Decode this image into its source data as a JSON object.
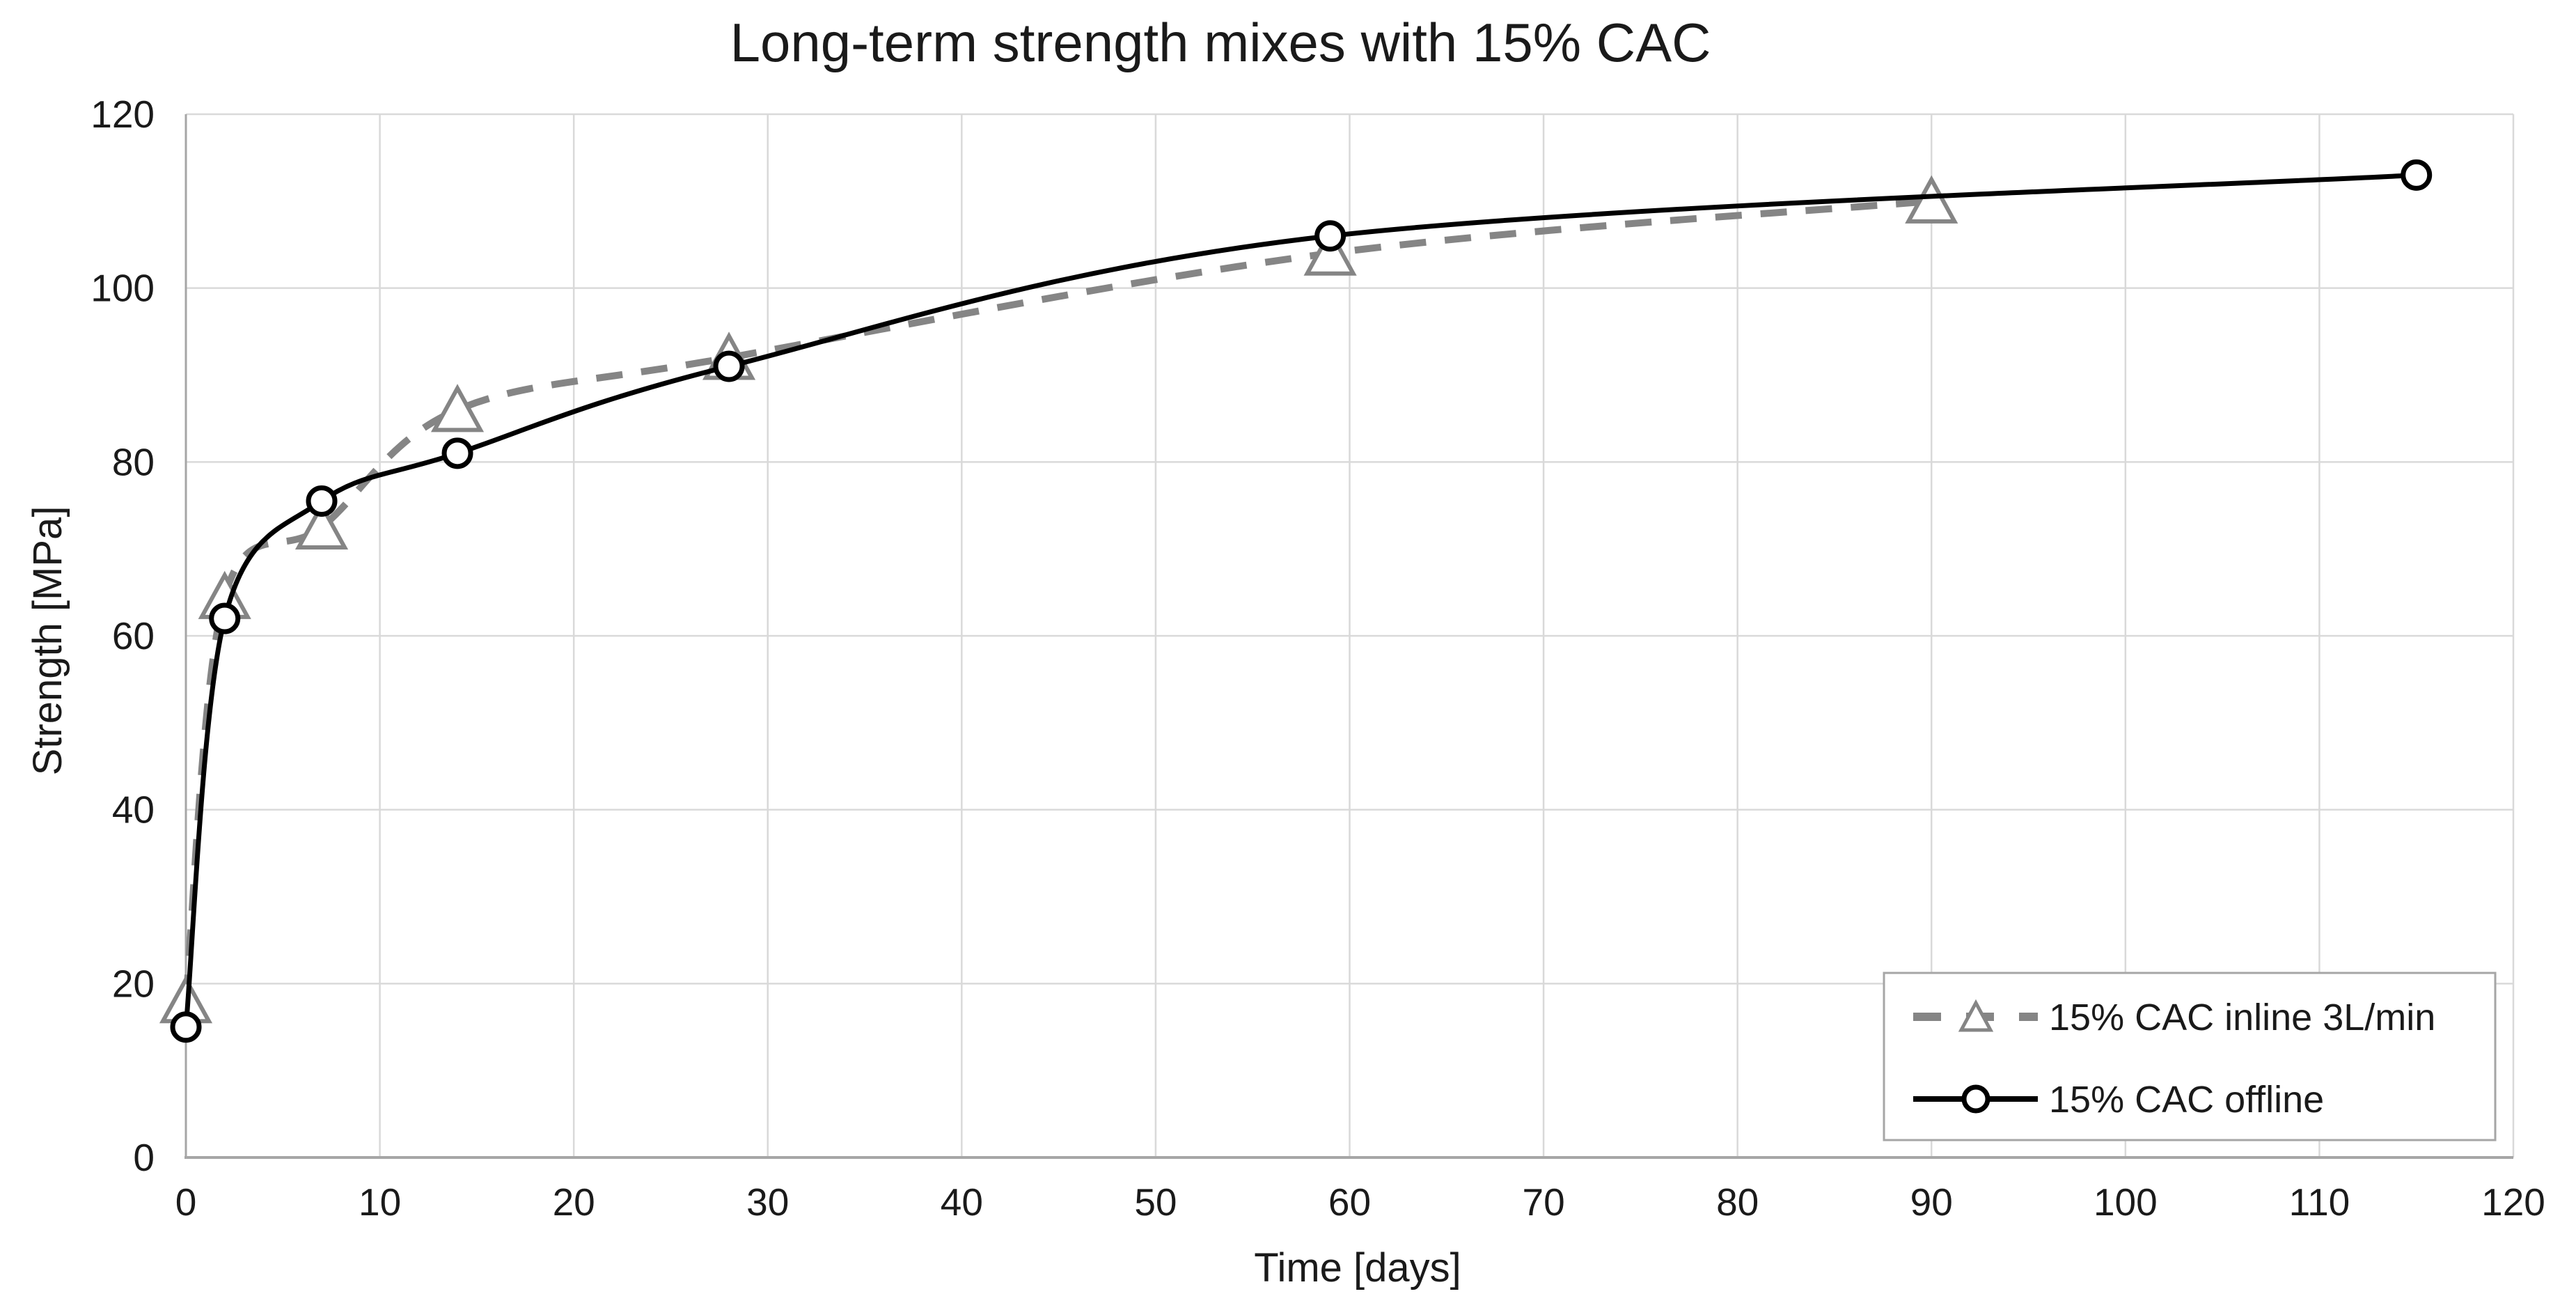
{
  "chart_data": {
    "type": "line",
    "title": "Long-term strength mixes with 15% CAC",
    "xlabel": "Time [days]",
    "ylabel": "Strength [MPa]",
    "xlim": [
      0,
      120
    ],
    "ylim": [
      0,
      120
    ],
    "x_ticks": [
      0,
      10,
      20,
      30,
      40,
      50,
      60,
      70,
      80,
      90,
      100,
      110,
      120
    ],
    "y_ticks": [
      0,
      20,
      40,
      60,
      80,
      100,
      120
    ],
    "grid": true,
    "smooth_lines": true,
    "legend_position": "bottom-right",
    "series": [
      {
        "name": "15% CAC inline 3L/min",
        "color": "#858585",
        "line_style": "dashed",
        "marker": "triangle",
        "x": [
          0,
          2,
          7,
          14,
          28,
          59,
          90
        ],
        "y": [
          18,
          64.5,
          72.5,
          86,
          92,
          104,
          110
        ]
      },
      {
        "name": "15% CAC offline",
        "color": "#000000",
        "line_style": "solid",
        "marker": "circle",
        "x": [
          0,
          2,
          7,
          14,
          28,
          59,
          115
        ],
        "y": [
          15,
          62,
          75.5,
          81,
          91,
          106,
          113
        ]
      }
    ]
  },
  "colors": {
    "background": "#ffffff",
    "gridline": "#d9d9d9",
    "axis_line": "#a6a6a6",
    "text": "#1a1a1a",
    "legend_border": "#a6a6a6",
    "marker_fill": "#ffffff"
  }
}
